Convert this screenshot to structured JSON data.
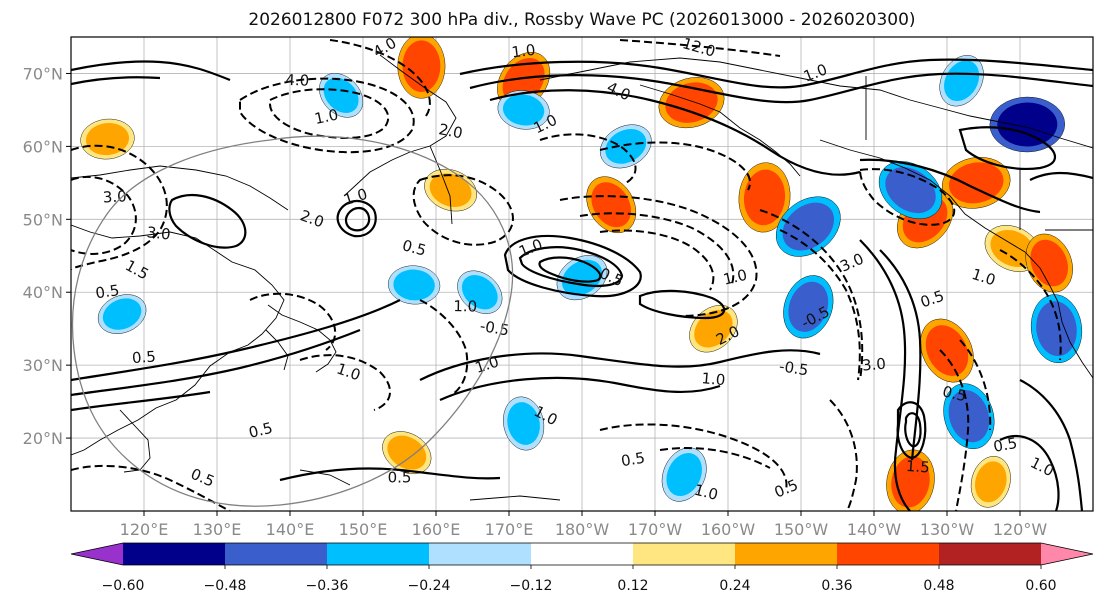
{
  "chart_data": {
    "type": "map-contour",
    "title": "2026012800 F072 300 hPa div., Rossby Wave PC (2026013000 - 2026020300)",
    "lon_range": [
      110,
      250
    ],
    "lat_range": [
      10,
      75
    ],
    "x_ticks": [
      {
        "lon": 120,
        "label": "120°E"
      },
      {
        "lon": 130,
        "label": "130°E"
      },
      {
        "lon": 140,
        "label": "140°E"
      },
      {
        "lon": 150,
        "label": "150°E"
      },
      {
        "lon": 160,
        "label": "160°E"
      },
      {
        "lon": 170,
        "label": "170°E"
      },
      {
        "lon": 180,
        "label": "180°W"
      },
      {
        "lon": 190,
        "label": "170°W"
      },
      {
        "lon": 200,
        "label": "160°W"
      },
      {
        "lon": 210,
        "label": "150°W"
      },
      {
        "lon": 220,
        "label": "140°W"
      },
      {
        "lon": 230,
        "label": "130°W"
      },
      {
        "lon": 240,
        "label": "120°W"
      }
    ],
    "y_ticks": [
      {
        "lat": 20,
        "label": "20°N"
      },
      {
        "lat": 30,
        "label": "30°N"
      },
      {
        "lat": 40,
        "label": "40°N"
      },
      {
        "lat": 50,
        "label": "50°N"
      },
      {
        "lat": 60,
        "label": "60°N"
      },
      {
        "lat": 70,
        "label": "70°N"
      }
    ],
    "colorbar": {
      "levels": [
        -0.6,
        -0.48,
        -0.36,
        -0.24,
        -0.12,
        0.12,
        0.24,
        0.36,
        0.48,
        0.6
      ],
      "tick_labels": [
        "−0.60",
        "−0.48",
        "−0.36",
        "−0.24",
        "−0.12",
        "0.12",
        "0.24",
        "0.36",
        "0.48",
        "0.60"
      ],
      "colors": [
        "#9932cc",
        "#00008b",
        "#3a5fcd",
        "#00bfff",
        "#b0e0ff",
        "#ffffff",
        "#ffe680",
        "#ffa500",
        "#ff4500",
        "#b22222",
        "#ff88aa"
      ]
    },
    "fill_regions": [
      {
        "lon": 158,
        "lat": 71,
        "value": 0.4
      },
      {
        "lon": 172,
        "lat": 69,
        "value": 0.38
      },
      {
        "lon": 195,
        "lat": 66,
        "value": 0.42
      },
      {
        "lon": 162,
        "lat": 54,
        "value": 0.3
      },
      {
        "lon": 184,
        "lat": 52,
        "value": 0.36
      },
      {
        "lon": 205,
        "lat": 53,
        "value": 0.45
      },
      {
        "lon": 227,
        "lat": 50,
        "value": 0.4
      },
      {
        "lon": 234,
        "lat": 55,
        "value": 0.44
      },
      {
        "lon": 239,
        "lat": 46,
        "value": 0.34
      },
      {
        "lon": 230,
        "lat": 32,
        "value": 0.42
      },
      {
        "lon": 225,
        "lat": 14,
        "value": 0.4
      },
      {
        "lon": 198,
        "lat": 35,
        "value": 0.3
      },
      {
        "lon": 115,
        "lat": 61,
        "value": 0.3
      },
      {
        "lon": 156,
        "lat": 18,
        "value": 0.28
      },
      {
        "lon": 244,
        "lat": 44,
        "value": 0.36
      },
      {
        "lon": 236,
        "lat": 14,
        "value": 0.28
      },
      {
        "lon": 211,
        "lat": 49,
        "value": -0.46
      },
      {
        "lon": 241,
        "lat": 63,
        "value": -0.5
      },
      {
        "lon": 225,
        "lat": 54,
        "value": -0.44
      },
      {
        "lon": 233,
        "lat": 23,
        "value": -0.42
      },
      {
        "lon": 211,
        "lat": 38,
        "value": -0.4
      },
      {
        "lon": 180,
        "lat": 42,
        "value": -0.3
      },
      {
        "lon": 157,
        "lat": 41,
        "value": -0.28
      },
      {
        "lon": 166,
        "lat": 40,
        "value": -0.26
      },
      {
        "lon": 172,
        "lat": 22,
        "value": -0.3
      },
      {
        "lon": 194,
        "lat": 15,
        "value": -0.32
      },
      {
        "lon": 186,
        "lat": 60,
        "value": -0.3
      },
      {
        "lon": 172,
        "lat": 65,
        "value": -0.28
      },
      {
        "lon": 147,
        "lat": 67,
        "value": -0.26
      },
      {
        "lon": 245,
        "lat": 35,
        "value": -0.44
      },
      {
        "lon": 232,
        "lat": 69,
        "value": -0.3
      },
      {
        "lon": 117,
        "lat": 37,
        "value": -0.26
      }
    ],
    "contour_labels": [
      {
        "text": "4.0",
        "lon": 153,
        "lat": 73.5
      },
      {
        "text": "1.0",
        "lon": 172,
        "lat": 73
      },
      {
        "text": "12.0",
        "lon": 196,
        "lat": 73.5
      },
      {
        "text": "1.0",
        "lon": 212,
        "lat": 70
      },
      {
        "text": "4.0",
        "lon": 141,
        "lat": 69
      },
      {
        "text": "4.0",
        "lon": 185,
        "lat": 67.5
      },
      {
        "text": "1.0",
        "lon": 145,
        "lat": 64
      },
      {
        "text": "2.0",
        "lon": 162,
        "lat": 62
      },
      {
        "text": "1.0",
        "lon": 175,
        "lat": 63
      },
      {
        "text": "3.0",
        "lon": 116,
        "lat": 53
      },
      {
        "text": "2.0",
        "lon": 143,
        "lat": 50
      },
      {
        "text": "1.0",
        "lon": 149,
        "lat": 53
      },
      {
        "text": "3.0",
        "lon": 122,
        "lat": 48
      },
      {
        "text": "1.5",
        "lon": 119,
        "lat": 43
      },
      {
        "text": "0.5",
        "lon": 115,
        "lat": 40
      },
      {
        "text": "0.5",
        "lon": 157,
        "lat": 46
      },
      {
        "text": "1.0",
        "lon": 173,
        "lat": 46
      },
      {
        "text": "1.0",
        "lon": 164,
        "lat": 38
      },
      {
        "text": "0.5",
        "lon": 184,
        "lat": 42
      },
      {
        "text": "1.0",
        "lon": 201,
        "lat": 42
      },
      {
        "text": "-0.5",
        "lon": 168,
        "lat": 35
      },
      {
        "text": "2.0",
        "lon": 200,
        "lat": 34
      },
      {
        "text": "0.5",
        "lon": 120,
        "lat": 31
      },
      {
        "text": "1.0",
        "lon": 148,
        "lat": 29
      },
      {
        "text": "1.0",
        "lon": 167,
        "lat": 30
      },
      {
        "text": "1.0",
        "lon": 198,
        "lat": 28
      },
      {
        "text": "1.0",
        "lon": 175,
        "lat": 23
      },
      {
        "text": "0.5",
        "lon": 187,
        "lat": 17
      },
      {
        "text": "1.0",
        "lon": 197,
        "lat": 12.5
      },
      {
        "text": "0.5",
        "lon": 208,
        "lat": 13
      },
      {
        "text": "0.5",
        "lon": 155,
        "lat": 14.5
      },
      {
        "text": "0.5",
        "lon": 128,
        "lat": 14.5
      },
      {
        "text": "0.5",
        "lon": 136,
        "lat": 21
      },
      {
        "text": "-0.5",
        "lon": 209,
        "lat": 29.5
      },
      {
        "text": "-0.5",
        "lon": 212,
        "lat": 36.5
      },
      {
        "text": "3.0",
        "lon": 220,
        "lat": 30
      },
      {
        "text": "1.0",
        "lon": 235,
        "lat": 42
      },
      {
        "text": "0.5",
        "lon": 228,
        "lat": 39
      },
      {
        "text": "1.5",
        "lon": 226,
        "lat": 16
      },
      {
        "text": "1.0",
        "lon": 243,
        "lat": 16
      },
      {
        "text": "0.5",
        "lon": 238,
        "lat": 19
      },
      {
        "text": "0.5",
        "lon": 231,
        "lat": 26
      },
      {
        "text": "3.0",
        "lon": 217,
        "lat": 44
      }
    ]
  }
}
